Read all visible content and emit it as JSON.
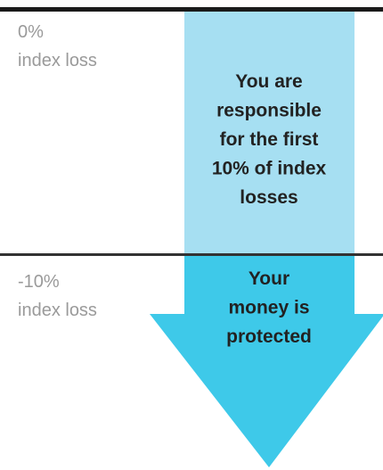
{
  "levels": [
    {
      "percent": "0%",
      "label": "index loss"
    },
    {
      "percent": "-10%",
      "label": "index loss"
    }
  ],
  "zones": [
    {
      "lines": [
        "You are",
        "responsible",
        "for the first",
        "10% of index",
        "losses"
      ]
    },
    {
      "lines": [
        "Your",
        "money is",
        "protected"
      ]
    }
  ]
}
